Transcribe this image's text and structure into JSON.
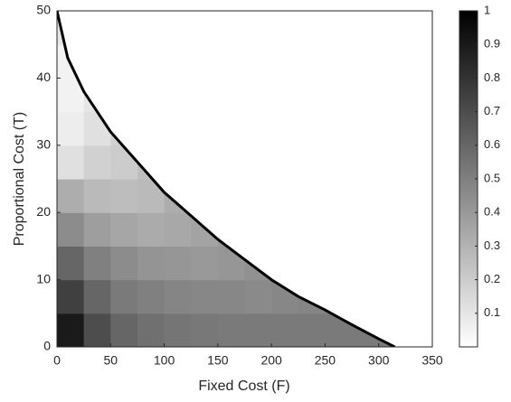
{
  "chart_data": {
    "type": "heatmap",
    "xlabel": "Fixed Cost (F)",
    "ylabel": "Proportional Cost (T)",
    "xlim": [
      0,
      350
    ],
    "xticks": [
      0,
      50,
      100,
      150,
      200,
      250,
      300,
      350
    ],
    "ylim": [
      0,
      50
    ],
    "yticks": [
      0,
      10,
      20,
      30,
      40,
      50
    ],
    "x": [
      12.5,
      37.5,
      62.5,
      87.5,
      112.5,
      137.5,
      162.5,
      187.5,
      212.5,
      237.5,
      262.5,
      287.5,
      312.5,
      337.5
    ],
    "y": [
      2.5,
      7.5,
      12.5,
      17.5,
      22.5,
      27.5,
      32.5,
      37.5,
      42.5,
      47.5
    ],
    "z": [
      [
        0.9,
        0.7,
        0.6,
        0.56,
        0.54,
        0.53,
        0.52,
        0.52,
        0.52,
        0.52,
        0.52,
        0.52,
        0.52,
        null
      ],
      [
        0.75,
        0.6,
        0.52,
        0.5,
        0.48,
        0.47,
        0.47,
        0.46,
        0.47,
        0.48,
        0.5,
        null,
        null,
        null
      ],
      [
        0.6,
        0.5,
        0.45,
        0.42,
        0.41,
        0.4,
        0.41,
        0.43,
        null,
        null,
        null,
        null,
        null,
        null
      ],
      [
        0.45,
        0.38,
        0.35,
        0.33,
        0.34,
        0.36,
        0.4,
        null,
        null,
        null,
        null,
        null,
        null,
        null
      ],
      [
        0.32,
        0.27,
        0.26,
        0.27,
        0.32,
        null,
        null,
        null,
        null,
        null,
        null,
        null,
        null,
        null
      ],
      [
        0.12,
        0.18,
        0.2,
        0.25,
        null,
        null,
        null,
        null,
        null,
        null,
        null,
        null,
        null,
        null
      ],
      [
        0.07,
        0.12,
        0.18,
        null,
        null,
        null,
        null,
        null,
        null,
        null,
        null,
        null,
        null,
        null
      ],
      [
        0.05,
        0.1,
        null,
        null,
        null,
        null,
        null,
        null,
        null,
        null,
        null,
        null,
        null,
        null
      ],
      [
        0.05,
        null,
        null,
        null,
        null,
        null,
        null,
        null,
        null,
        null,
        null,
        null,
        null,
        null
      ],
      [
        0.1,
        null,
        null,
        null,
        null,
        null,
        null,
        null,
        null,
        null,
        null,
        null,
        null,
        null
      ]
    ],
    "boundary": {
      "color": "#000000",
      "x": [
        0,
        10,
        25,
        50,
        75,
        100,
        125,
        150,
        175,
        200,
        225,
        250,
        275,
        300,
        315
      ],
      "y": [
        50,
        43,
        38,
        32,
        27.5,
        23,
        19.5,
        16,
        13,
        10,
        7.5,
        5.5,
        3.3,
        1.2,
        0
      ]
    },
    "clim": [
      0,
      1
    ],
    "cticks": [
      0.1,
      0.2,
      0.3,
      0.4,
      0.5,
      0.6,
      0.7,
      0.8,
      0.9,
      1
    ],
    "colormap": [
      "#ffffff",
      "#000000"
    ]
  }
}
